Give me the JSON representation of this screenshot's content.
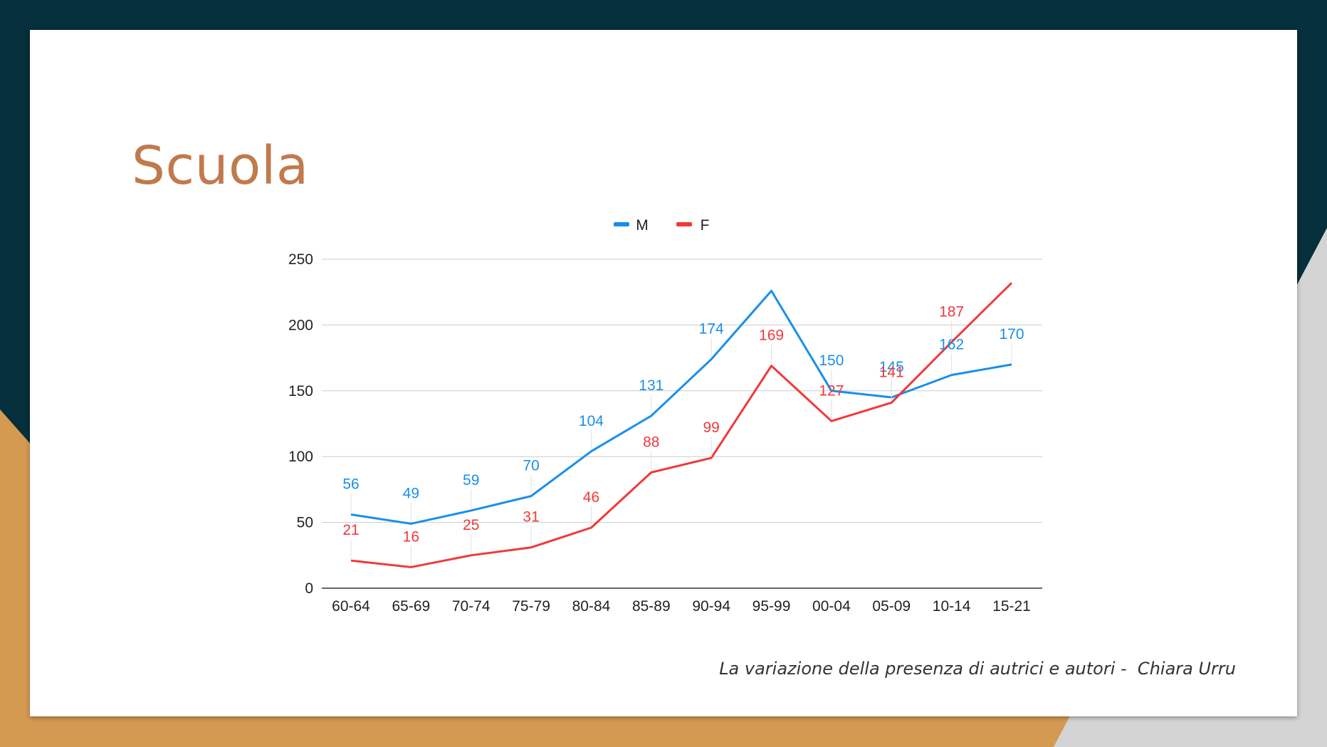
{
  "slide": {
    "title": "Scuola",
    "caption": "La variazione della presenza di autrici e autori -  Chiara Urru"
  },
  "colors": {
    "background_dark": "#062f3c",
    "accent_orange": "#d49a52",
    "accent_grey": "#d4d4d4",
    "title": "#c07a4c",
    "series_m": "#1a8fe8",
    "series_f": "#f0393a"
  },
  "chart_data": {
    "type": "line",
    "categories": [
      "60-64",
      "65-69",
      "70-74",
      "75-79",
      "80-84",
      "85-89",
      "90-94",
      "95-99",
      "00-04",
      "05-09",
      "10-14",
      "15-21"
    ],
    "series": [
      {
        "name": "M",
        "color": "#1a8fe8",
        "values": [
          56,
          49,
          59,
          70,
          104,
          131,
          174,
          226,
          150,
          145,
          162,
          170
        ],
        "labels": [
          "56",
          "49",
          "59",
          "70",
          "104",
          "131",
          "174",
          "",
          "150",
          "145",
          "162",
          "170"
        ]
      },
      {
        "name": "F",
        "color": "#f0393a",
        "values": [
          21,
          16,
          25,
          31,
          46,
          88,
          99,
          169,
          127,
          141,
          187,
          232
        ],
        "labels": [
          "21",
          "16",
          "25",
          "31",
          "46",
          "88",
          "99",
          "169",
          "127",
          "141",
          "187",
          ""
        ]
      }
    ],
    "yticks": [
      "0",
      "50",
      "100",
      "150",
      "200",
      "250"
    ],
    "ylim": [
      0,
      250
    ],
    "grid": true,
    "legend": "top-center"
  }
}
